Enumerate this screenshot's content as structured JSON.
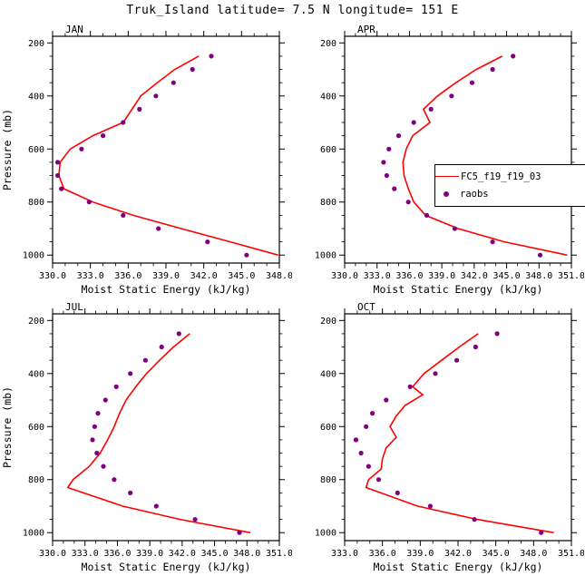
{
  "title": "Truk_Island  latitude= 7.5 N longitude= 151 E",
  "legend": {
    "model_label": "FC5_f19_f19_03",
    "raobs_label": "raobs"
  },
  "colors": {
    "model": "#ff0000",
    "raobs": "#800080",
    "axis": "#000000"
  },
  "chart_data": {
    "type": "line",
    "title": "Truk_Island  latitude= 7.5 N longitude= 151 E",
    "xlabel": "Moist Static Energy (kJ/kg)",
    "ylabel": "Pressure (mb)",
    "y_axis_inverted": true,
    "ylim": [
      175,
      1030
    ],
    "yticks": [
      200,
      400,
      600,
      800,
      1000
    ],
    "panels": [
      {
        "label": "JAN",
        "xlim": [
          330.0,
          348.0
        ],
        "xticks": [
          330.0,
          333.0,
          336.0,
          339.0,
          342.0,
          345.0,
          348.0
        ],
        "model": {
          "p": [
            250,
            300,
            350,
            400,
            450,
            500,
            550,
            600,
            650,
            700,
            750,
            800,
            850,
            900,
            950,
            1000
          ],
          "v": [
            341.6,
            339.7,
            338.3,
            337.0,
            336.3,
            335.6,
            333.2,
            331.4,
            330.6,
            330.5,
            330.9,
            333.2,
            336.4,
            340.2,
            344.1,
            347.9
          ]
        },
        "raobs": {
          "p": [
            250,
            300,
            350,
            400,
            450,
            500,
            550,
            600,
            650,
            700,
            750,
            800,
            850,
            900,
            950,
            1000
          ],
          "v": [
            342.6,
            341.1,
            339.6,
            338.2,
            336.9,
            335.6,
            334.0,
            332.3,
            330.4,
            330.4,
            330.7,
            332.9,
            335.6,
            338.4,
            342.3,
            345.4
          ]
        }
      },
      {
        "label": "APR",
        "xlim": [
          330.0,
          351.0
        ],
        "xticks": [
          330.0,
          333.0,
          336.0,
          339.0,
          342.0,
          345.0,
          348.0,
          351.0
        ],
        "model": {
          "p": [
            250,
            300,
            350,
            400,
            450,
            500,
            550,
            600,
            650,
            700,
            750,
            800,
            850,
            900,
            950,
            1000
          ],
          "v": [
            344.6,
            342.2,
            340.3,
            338.6,
            337.3,
            337.9,
            336.3,
            335.7,
            335.4,
            335.5,
            335.9,
            336.4,
            337.5,
            340.5,
            344.8,
            350.6
          ]
        },
        "raobs": {
          "p": [
            250,
            300,
            350,
            400,
            450,
            500,
            550,
            600,
            650,
            700,
            750,
            800,
            850,
            900,
            950,
            1000
          ],
          "v": [
            345.6,
            343.7,
            341.8,
            339.9,
            338.0,
            336.4,
            335.0,
            334.1,
            333.6,
            333.9,
            334.6,
            335.9,
            337.6,
            340.2,
            343.7,
            348.1
          ]
        }
      },
      {
        "label": "JUL",
        "xlim": [
          330.0,
          351.0
        ],
        "xticks": [
          330.0,
          333.0,
          336.0,
          339.0,
          342.0,
          345.0,
          348.0,
          351.0
        ],
        "model": {
          "p": [
            250,
            300,
            350,
            400,
            450,
            500,
            550,
            600,
            650,
            700,
            750,
            800,
            830,
            900,
            950,
            1000
          ],
          "v": [
            342.7,
            341.2,
            339.9,
            338.7,
            337.7,
            336.8,
            336.2,
            335.7,
            335.1,
            334.4,
            333.4,
            331.9,
            331.4,
            336.5,
            341.8,
            348.3
          ]
        },
        "raobs": {
          "p": [
            250,
            300,
            350,
            400,
            450,
            500,
            550,
            600,
            650,
            700,
            750,
            800,
            850,
            900,
            950,
            1000
          ],
          "v": [
            341.7,
            340.1,
            338.6,
            337.2,
            335.9,
            334.9,
            334.2,
            333.9,
            333.7,
            334.1,
            334.7,
            335.7,
            337.2,
            339.6,
            343.2,
            347.3
          ]
        }
      },
      {
        "label": "OCT",
        "xlim": [
          333.0,
          351.0
        ],
        "xticks": [
          333.0,
          336.0,
          339.0,
          342.0,
          345.0,
          348.0,
          351.0
        ],
        "model": {
          "p": [
            250,
            300,
            350,
            400,
            450,
            480,
            520,
            560,
            600,
            640,
            680,
            720,
            760,
            800,
            830,
            900,
            950,
            1000
          ],
          "v": [
            343.6,
            342.1,
            340.7,
            339.3,
            338.4,
            339.2,
            337.8,
            337.1,
            336.6,
            337.1,
            336.3,
            336.0,
            335.9,
            334.9,
            334.7,
            338.8,
            343.5,
            349.6
          ]
        },
        "raobs": {
          "p": [
            250,
            300,
            350,
            400,
            450,
            500,
            550,
            600,
            650,
            700,
            750,
            800,
            850,
            900,
            950,
            1000
          ],
          "v": [
            345.1,
            343.4,
            341.9,
            340.2,
            338.2,
            336.3,
            335.2,
            334.7,
            333.9,
            334.3,
            334.9,
            335.7,
            337.2,
            339.8,
            343.3,
            348.6
          ]
        }
      }
    ]
  }
}
